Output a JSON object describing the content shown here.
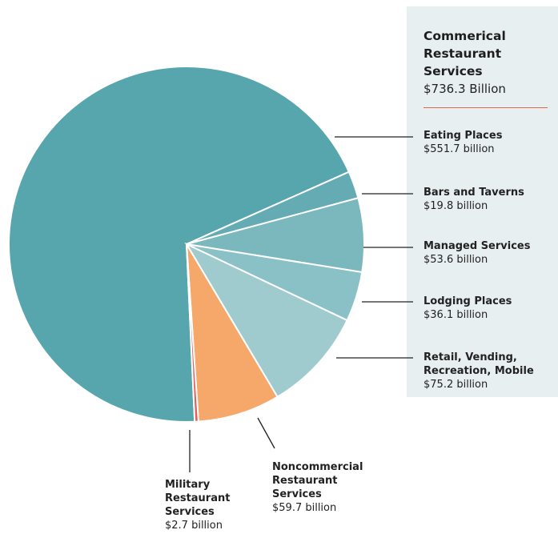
{
  "header": {
    "title": "Commerical Restaurant Services",
    "value": "$736.3 Billion"
  },
  "chart_data": {
    "type": "pie",
    "slices": [
      {
        "label": "Eating Places",
        "value": 551.7,
        "value_label": "$551.7 billion",
        "color": "#57a5ad"
      },
      {
        "label": "Bars and Taverns",
        "value": 19.8,
        "value_label": "$19.8 billion",
        "color": "#64abb4"
      },
      {
        "label": "Managed Services",
        "value": 53.6,
        "value_label": "$53.6 billion",
        "color": "#7bb8be"
      },
      {
        "label": "Lodging Places",
        "value": 36.1,
        "value_label": "$36.1 billion",
        "color": "#8ac1c6"
      },
      {
        "label": "Retail, Vending, Recreation, Mobile",
        "value": 75.2,
        "value_label": "$75.2 billion",
        "color": "#9fcbcf"
      },
      {
        "label": "Noncommercial Restaurant Services",
        "value": 59.7,
        "value_label": "$59.7 billion",
        "color": "#f6a76a"
      },
      {
        "label": "Military Restaurant Services",
        "value": 2.7,
        "value_label": "$2.7 billion",
        "color": "#e5605a"
      }
    ]
  },
  "colors": {
    "panel": "#e8eff0",
    "rule": "#e06a4e",
    "leader": "#222222"
  }
}
